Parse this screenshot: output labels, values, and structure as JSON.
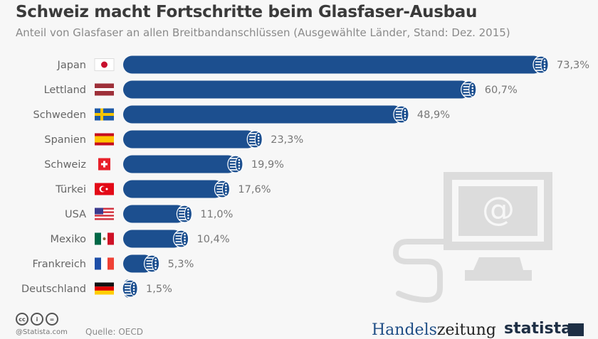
{
  "header": {
    "title": "Schweiz macht Fortschritte beim Glasfaser-Ausbau",
    "subtitle": "Anteil von Glasfaser an allen Breitbandanschlüssen (Ausgewählte Länder, Stand: Dez. 2015)"
  },
  "footer": {
    "copyright": "@Statista.com",
    "source": "Quelle: OECD",
    "partner_logo_part1": "Handels",
    "partner_logo_part2": "zeitung",
    "brand_logo": "statista",
    "license_icons": [
      "cc-icon",
      "by-attribution-icon",
      "no-derivatives-icon"
    ],
    "license_glyphs": [
      "cc",
      "i",
      "="
    ]
  },
  "colors": {
    "bar": "#1c4f8f",
    "label": "#666666",
    "value": "#777777",
    "illustration": "#dcdcdc"
  },
  "illustration": {
    "icon": "computer-monitor-icon",
    "screen_symbol": "@"
  },
  "chart_data": {
    "type": "bar",
    "orientation": "horizontal",
    "title": "Schweiz macht Fortschritte beim Glasfaser-Ausbau",
    "subtitle": "Anteil von Glasfaser an allen Breitbandanschlüssen (Ausgewählte Länder, Stand: Dez. 2015)",
    "xlabel": "",
    "ylabel": "",
    "unit": "%",
    "xlim": [
      0,
      100
    ],
    "grid": false,
    "legend": "none",
    "categories": [
      "Japan",
      "Lettland",
      "Schweden",
      "Spanien",
      "Schweiz",
      "Türkei",
      "USA",
      "Mexiko",
      "Frankreich",
      "Deutschland"
    ],
    "flags": [
      "flag-japan-icon",
      "flag-latvia-icon",
      "flag-sweden-icon",
      "flag-spain-icon",
      "flag-switzerland-icon",
      "flag-turkey-icon",
      "flag-usa-icon",
      "flag-mexico-icon",
      "flag-france-icon",
      "flag-germany-icon"
    ],
    "values": [
      73.3,
      60.7,
      48.9,
      23.3,
      19.9,
      17.6,
      11.0,
      10.4,
      5.3,
      1.5
    ],
    "value_labels": [
      "73,3%",
      "60,7%",
      "48,9%",
      "23,3%",
      "19,9%",
      "17,6%",
      "11,0%",
      "10,4%",
      "5,3%",
      "1,5%"
    ]
  }
}
